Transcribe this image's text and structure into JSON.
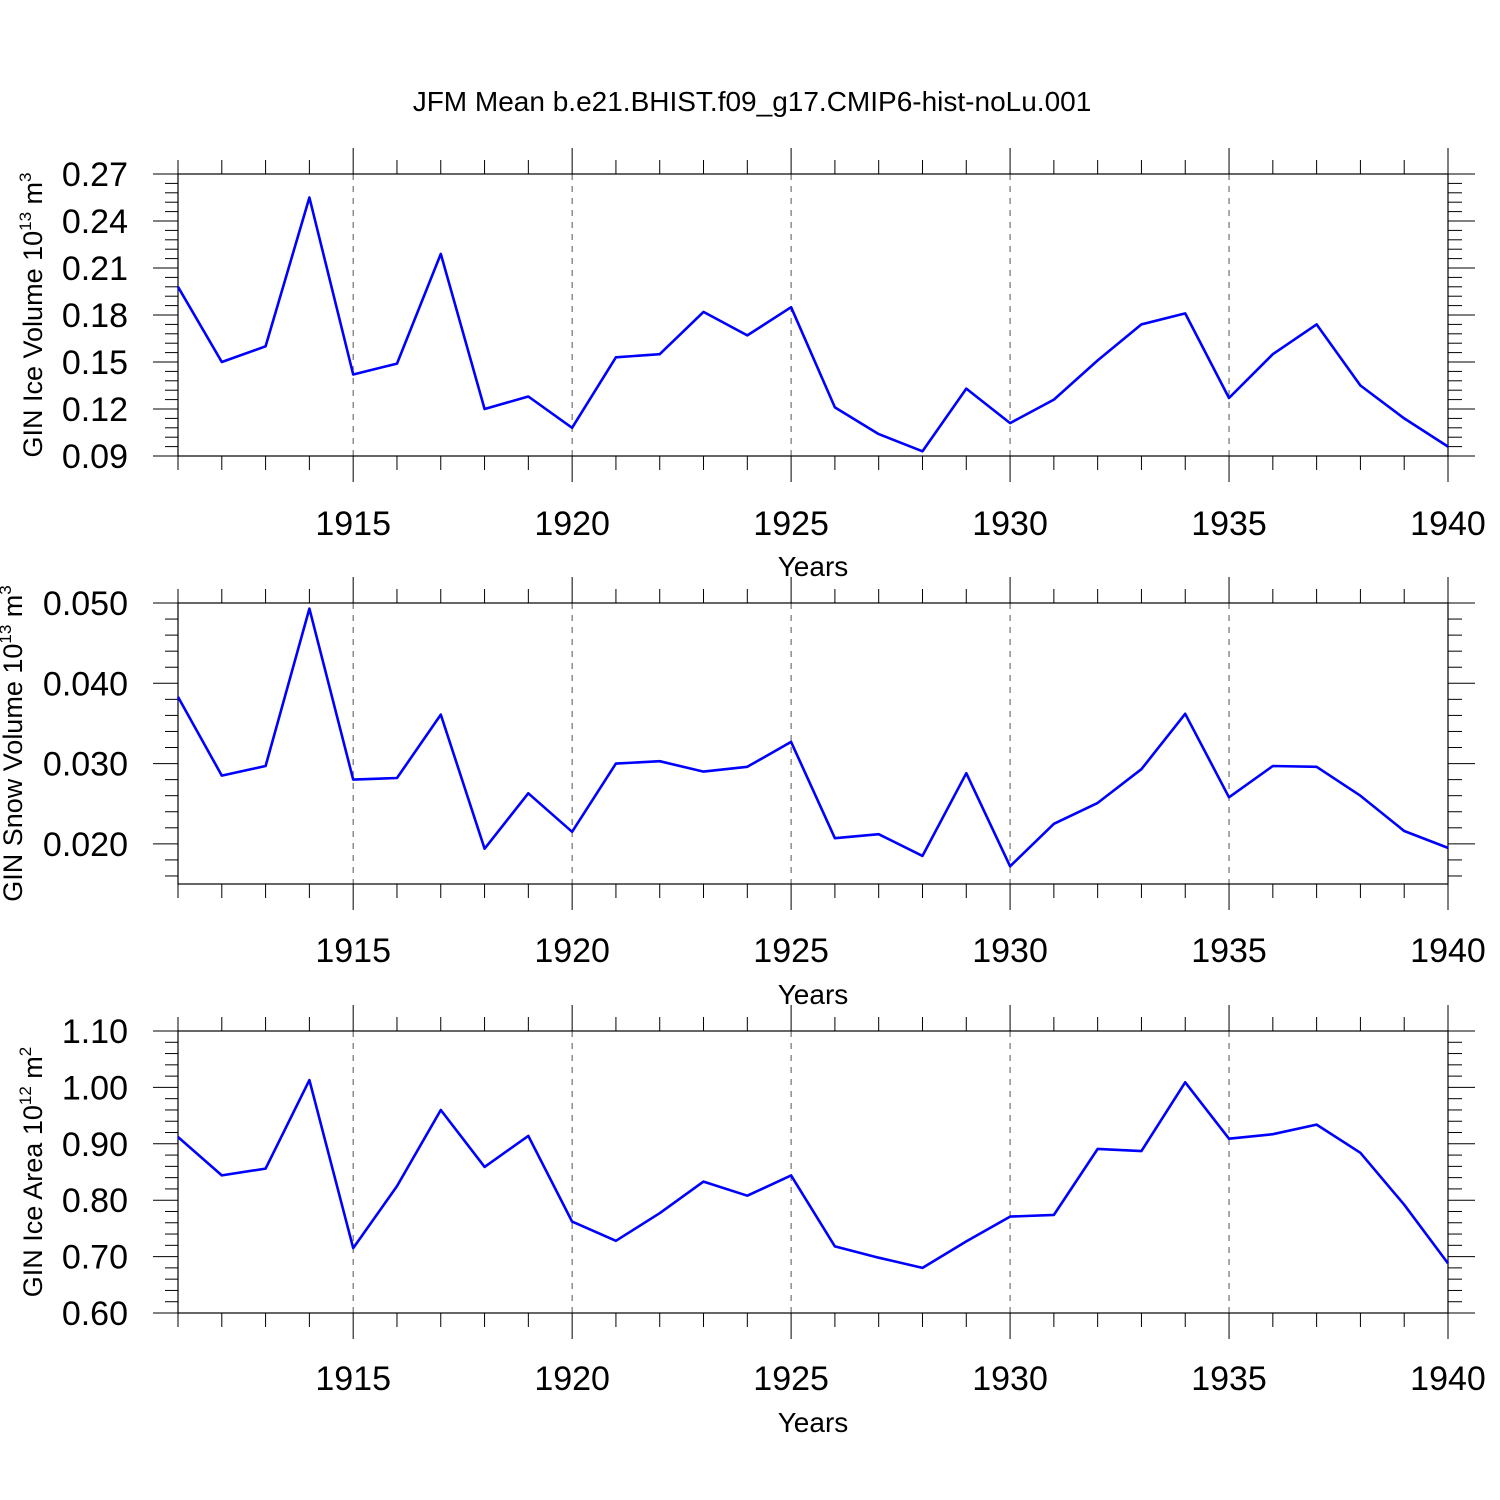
{
  "title": "JFM Mean b.e21.BHIST.f09_g17.CMIP6-hist-noLu.001",
  "chart_data": [
    {
      "type": "line",
      "ylabel": {
        "main": "GIN Ice Volume 10",
        "sup1": "13",
        "mid": " m",
        "sup2": "3"
      },
      "xlabel": "Years",
      "xlim": [
        1911,
        1940
      ],
      "ylim": [
        0.09,
        0.27
      ],
      "yticks": [
        "0.09",
        "0.12",
        "0.15",
        "0.18",
        "0.21",
        "0.24",
        "0.27"
      ],
      "xticks": [
        "1915",
        "1920",
        "1925",
        "1930",
        "1935",
        "1940"
      ],
      "grid": "vertical dashed at labeled years",
      "color": "#0000ff",
      "x": [
        1911,
        1912,
        1913,
        1914,
        1915,
        1916,
        1917,
        1918,
        1919,
        1920,
        1921,
        1922,
        1923,
        1924,
        1925,
        1926,
        1927,
        1928,
        1929,
        1930,
        1931,
        1932,
        1933,
        1934,
        1935,
        1936,
        1937,
        1938,
        1939,
        1940
      ],
      "values": [
        0.198,
        0.15,
        0.16,
        0.255,
        0.142,
        0.149,
        0.219,
        0.12,
        0.128,
        0.108,
        0.153,
        0.155,
        0.182,
        0.167,
        0.185,
        0.121,
        0.104,
        0.093,
        0.133,
        0.111,
        0.126,
        0.151,
        0.174,
        0.181,
        0.127,
        0.155,
        0.174,
        0.135,
        0.114,
        0.096
      ]
    },
    {
      "type": "line",
      "ylabel": {
        "main": "GIN Snow Volume 10",
        "sup1": "13",
        "mid": " m",
        "sup2": "3"
      },
      "xlabel": "Years",
      "xlim": [
        1911,
        1940
      ],
      "ylim": [
        0.015,
        0.05
      ],
      "yticks": [
        "0.020",
        "0.030",
        "0.040",
        "0.050"
      ],
      "xticks": [
        "1915",
        "1920",
        "1925",
        "1930",
        "1935",
        "1940"
      ],
      "grid": "vertical dashed at labeled years",
      "color": "#0000ff",
      "x": [
        1911,
        1912,
        1913,
        1914,
        1915,
        1916,
        1917,
        1918,
        1919,
        1920,
        1921,
        1922,
        1923,
        1924,
        1925,
        1926,
        1927,
        1928,
        1929,
        1930,
        1931,
        1932,
        1933,
        1934,
        1935,
        1936,
        1937,
        1938,
        1939,
        1940
      ],
      "values": [
        0.0383,
        0.0285,
        0.0297,
        0.0493,
        0.028,
        0.0282,
        0.0361,
        0.0194,
        0.0263,
        0.0215,
        0.03,
        0.0303,
        0.029,
        0.0296,
        0.0327,
        0.0207,
        0.0212,
        0.0185,
        0.0288,
        0.0172,
        0.0225,
        0.0251,
        0.0293,
        0.0362,
        0.0258,
        0.0297,
        0.0296,
        0.026,
        0.0216,
        0.0195
      ]
    },
    {
      "type": "line",
      "ylabel": {
        "main": "GIN Ice Area 10",
        "sup1": "12",
        "mid": " m",
        "sup2": "2"
      },
      "xlabel": "Years",
      "xlim": [
        1911,
        1940
      ],
      "ylim": [
        0.6,
        1.1
      ],
      "yticks": [
        "0.60",
        "0.70",
        "0.80",
        "0.90",
        "1.00",
        "1.10"
      ],
      "xticks": [
        "1915",
        "1920",
        "1925",
        "1930",
        "1935",
        "1940"
      ],
      "grid": "vertical dashed at labeled years",
      "color": "#0000ff",
      "x": [
        1911,
        1912,
        1913,
        1914,
        1915,
        1916,
        1917,
        1918,
        1919,
        1920,
        1921,
        1922,
        1923,
        1924,
        1925,
        1926,
        1927,
        1928,
        1929,
        1930,
        1931,
        1932,
        1933,
        1934,
        1935,
        1936,
        1937,
        1938,
        1939,
        1940
      ],
      "values": [
        0.912,
        0.844,
        0.856,
        1.013,
        0.715,
        0.825,
        0.96,
        0.859,
        0.914,
        0.762,
        0.728,
        0.777,
        0.833,
        0.808,
        0.844,
        0.718,
        0.698,
        0.68,
        0.727,
        0.771,
        0.774,
        0.891,
        0.887,
        1.009,
        0.909,
        0.917,
        0.934,
        0.884,
        0.792,
        0.688
      ]
    }
  ]
}
